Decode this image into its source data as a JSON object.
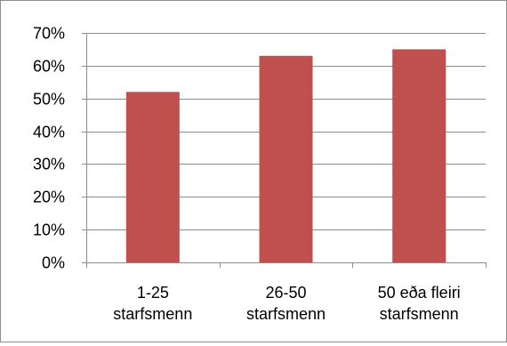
{
  "chart_data": {
    "type": "bar",
    "categories": [
      [
        "1-25",
        "starfsmenn"
      ],
      [
        "26-50",
        "starfsmenn"
      ],
      [
        "50 eða fleiri",
        "starfsmenn"
      ]
    ],
    "values": [
      0.52,
      0.63,
      0.65
    ],
    "ylim": [
      0,
      0.7
    ],
    "yticks": [
      0,
      0.1,
      0.2,
      0.3,
      0.4,
      0.5,
      0.6,
      0.7
    ],
    "ytick_labels": [
      "0%",
      "10%",
      "20%",
      "30%",
      "40%",
      "50%",
      "60%",
      "70%"
    ],
    "grid": true,
    "bar_color": "#C0504D",
    "title": "",
    "xlabel": "",
    "ylabel": ""
  }
}
